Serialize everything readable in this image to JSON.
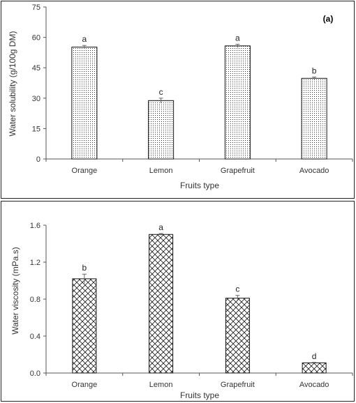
{
  "chart_data": [
    {
      "type": "bar",
      "panel_label": "(a)",
      "categories": [
        "Orange",
        "Lemon",
        "Grapefruit",
        "Avocado"
      ],
      "values": [
        55.2,
        28.8,
        55.8,
        39.8
      ],
      "errors": [
        0.8,
        1.2,
        0.8,
        0.6
      ],
      "significance": [
        "a",
        "c",
        "a",
        "b"
      ],
      "xlabel": "Fruits type",
      "ylabel": "Water solubility (g/100g DM)",
      "ylim": [
        0,
        75
      ],
      "yticks": [
        "0",
        "15",
        "30",
        "45",
        "60",
        "75"
      ],
      "ytick_values": [
        0,
        15,
        30,
        45,
        60,
        75
      ],
      "pattern": "dots",
      "grid": false
    },
    {
      "type": "bar",
      "categories": [
        "Orange",
        "Lemon",
        "Grapefruit",
        "Avocado"
      ],
      "values": [
        1.02,
        1.5,
        0.81,
        0.11
      ],
      "errors": [
        0.05,
        0.01,
        0.03,
        0.005
      ],
      "significance": [
        "b",
        "a",
        "c",
        "d"
      ],
      "xlabel": "Fruits type",
      "ylabel": "Water viscosity (mPa.s)",
      "ylim": [
        0,
        1.6
      ],
      "yticks": [
        "0.0",
        "0.4",
        "0.8",
        "1.2",
        "1.6"
      ],
      "ytick_values": [
        0,
        0.4,
        0.8,
        1.2,
        1.6
      ],
      "pattern": "crosshatch",
      "grid": false
    }
  ]
}
